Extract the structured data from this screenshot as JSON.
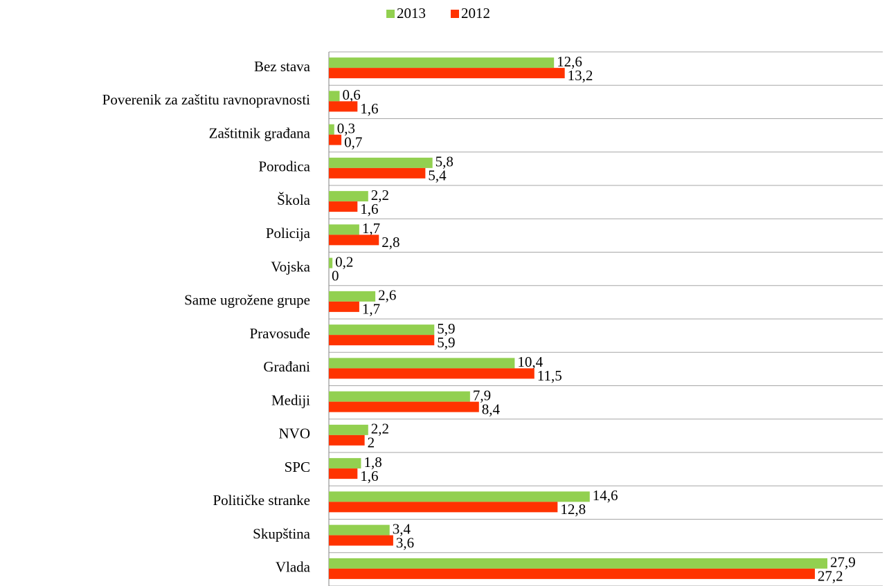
{
  "chart_data": {
    "type": "hbar",
    "categories": [
      "Bez stava",
      "Poverenik za zaštitu ravnopravnosti",
      "Zaštitnik građana",
      "Porodica",
      "Škola",
      "Policija",
      "Vojska",
      "Same ugrožene grupe",
      "Pravosuđe",
      "Građani",
      "Mediji",
      "NVO",
      "SPC",
      "Političke stranke",
      "Skupština",
      "Vlada"
    ],
    "series": [
      {
        "name": "2013",
        "color": "#92d050",
        "values": [
          12.6,
          0.6,
          0.3,
          5.8,
          2.2,
          1.7,
          0.2,
          2.6,
          5.9,
          10.4,
          7.9,
          2.2,
          1.8,
          14.6,
          3.4,
          27.9
        ],
        "value_labels": [
          "12,6",
          "0,6",
          "0,3",
          "5,8",
          "2,2",
          "1,7",
          "0,2",
          "2,6",
          "5,9",
          "10,4",
          "7,9",
          "2,2",
          "1,8",
          "14,6",
          "3,4",
          "27,9"
        ]
      },
      {
        "name": "2012",
        "color": "#ff3300",
        "values": [
          13.2,
          1.6,
          0.7,
          5.4,
          1.6,
          2.8,
          0,
          1.7,
          5.9,
          11.5,
          8.4,
          2,
          1.6,
          12.8,
          3.6,
          27.2
        ],
        "value_labels": [
          "13,2",
          "1,6",
          "0,7",
          "5,4",
          "1,6",
          "2,8",
          "0",
          "1,7",
          "5,9",
          "11,5",
          "8,4",
          "2",
          "1,6",
          "12,8",
          "3,6",
          "27,2"
        ]
      }
    ],
    "xlim": [
      0,
      31
    ],
    "grid": true,
    "legend": "top"
  }
}
